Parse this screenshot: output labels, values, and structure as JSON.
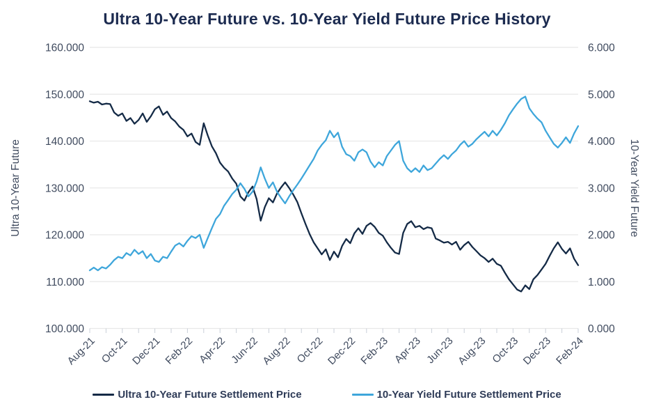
{
  "chart": {
    "title": "Ultra 10-Year Future vs. 10-Year Yield Future Price History"
  },
  "chart_data": {
    "type": "line",
    "title": "Ultra 10-Year Future vs. 10-Year Yield Future Price History",
    "grid": "horizontal",
    "legend_position": "bottom",
    "x_axis": {
      "unit": "months",
      "tick_labels": [
        "Aug-21",
        "Oct-21",
        "Dec-21",
        "Feb-22",
        "Apr-22",
        "Jun-22",
        "Aug-22",
        "Oct-22",
        "Dec-22",
        "Feb-23",
        "Apr-23",
        "Jun-23",
        "Aug-23",
        "Oct-23",
        "Dec-23",
        "Feb-24"
      ],
      "label_every_n_months": 2,
      "minor_ticks": "monthly"
    },
    "left_axis": {
      "label": "Ultra 10-Year Future",
      "min": 100,
      "max": 160,
      "tick_labels": [
        "160.000",
        "150.000",
        "140.000",
        "130.000",
        "120.000",
        "110.000",
        "100.000"
      ]
    },
    "right_axis": {
      "label": "10-Year Yield Future",
      "min": 0,
      "max": 6,
      "tick_labels": [
        "6.000",
        "5.000",
        "4.000",
        "3.000",
        "2.000",
        "1.000",
        "0.000"
      ]
    },
    "x_start_month": 0,
    "x_step_months": 0.25,
    "series": [
      {
        "name": "Ultra 10-Year Future Settlement Price",
        "axis": "left",
        "color": "#142A46",
        "values": [
          148.5,
          148.2,
          148.4,
          147.8,
          148.0,
          147.9,
          146.1,
          145.4,
          145.9,
          144.3,
          144.9,
          143.7,
          144.5,
          145.9,
          144.1,
          145.3,
          146.8,
          147.4,
          145.6,
          146.3,
          144.9,
          144.2,
          143.1,
          142.4,
          141.0,
          141.6,
          139.8,
          139.2,
          143.8,
          141.2,
          138.9,
          137.4,
          135.4,
          134.3,
          133.5,
          132.0,
          130.9,
          128.2,
          127.3,
          129.1,
          130.3,
          127.6,
          123.0,
          125.9,
          127.8,
          126.9,
          128.8,
          130.1,
          131.2,
          130.0,
          128.6,
          127.0,
          124.6,
          122.3,
          120.2,
          118.4,
          117.1,
          115.8,
          116.9,
          114.6,
          116.4,
          115.2,
          117.6,
          119.1,
          118.2,
          120.3,
          121.4,
          120.2,
          121.9,
          122.5,
          121.7,
          120.4,
          119.8,
          118.4,
          117.2,
          116.2,
          115.9,
          120.4,
          122.3,
          122.9,
          121.6,
          121.9,
          121.2,
          121.6,
          121.4,
          119.2,
          118.8,
          118.3,
          118.5,
          117.9,
          118.5,
          116.8,
          117.8,
          118.5,
          117.4,
          116.5,
          115.6,
          115.0,
          114.2,
          114.9,
          113.8,
          113.4,
          111.9,
          110.5,
          109.4,
          108.3,
          107.9,
          109.2,
          108.4,
          110.5,
          111.4,
          112.6,
          113.8,
          115.5,
          117.1,
          118.4,
          117.0,
          116.0,
          117.1,
          114.9,
          113.5
        ]
      },
      {
        "name": "10-Year Yield Future Settlement Price",
        "axis": "right",
        "color": "#3EA6DB",
        "values": [
          1.24,
          1.3,
          1.24,
          1.31,
          1.28,
          1.36,
          1.46,
          1.53,
          1.5,
          1.61,
          1.56,
          1.68,
          1.59,
          1.65,
          1.5,
          1.59,
          1.45,
          1.42,
          1.53,
          1.5,
          1.64,
          1.77,
          1.82,
          1.75,
          1.87,
          1.97,
          1.93,
          2.0,
          1.72,
          1.93,
          2.14,
          2.34,
          2.44,
          2.62,
          2.74,
          2.87,
          2.96,
          3.1,
          2.98,
          2.82,
          2.92,
          3.14,
          3.44,
          3.2,
          3.0,
          3.12,
          2.92,
          2.79,
          2.67,
          2.82,
          2.95,
          3.07,
          3.2,
          3.34,
          3.48,
          3.62,
          3.8,
          3.92,
          4.02,
          4.22,
          4.08,
          4.18,
          3.88,
          3.72,
          3.68,
          3.58,
          3.76,
          3.82,
          3.76,
          3.56,
          3.44,
          3.55,
          3.48,
          3.68,
          3.8,
          3.92,
          4.0,
          3.58,
          3.42,
          3.34,
          3.42,
          3.34,
          3.48,
          3.38,
          3.42,
          3.52,
          3.62,
          3.7,
          3.62,
          3.72,
          3.8,
          3.92,
          4.0,
          3.88,
          3.94,
          4.04,
          4.12,
          4.2,
          4.1,
          4.22,
          4.12,
          4.24,
          4.38,
          4.55,
          4.68,
          4.8,
          4.9,
          4.95,
          4.7,
          4.58,
          4.48,
          4.4,
          4.22,
          4.08,
          3.94,
          3.86,
          3.96,
          4.08,
          3.96,
          4.16,
          4.32
        ]
      }
    ],
    "style": {
      "grid_color": "#E8E8E8",
      "minor_tick_color": "#C9CFD8",
      "title_color": "#1C2B50",
      "tick_text_color": "#3F4A5E",
      "line_width": 2.3
    }
  }
}
